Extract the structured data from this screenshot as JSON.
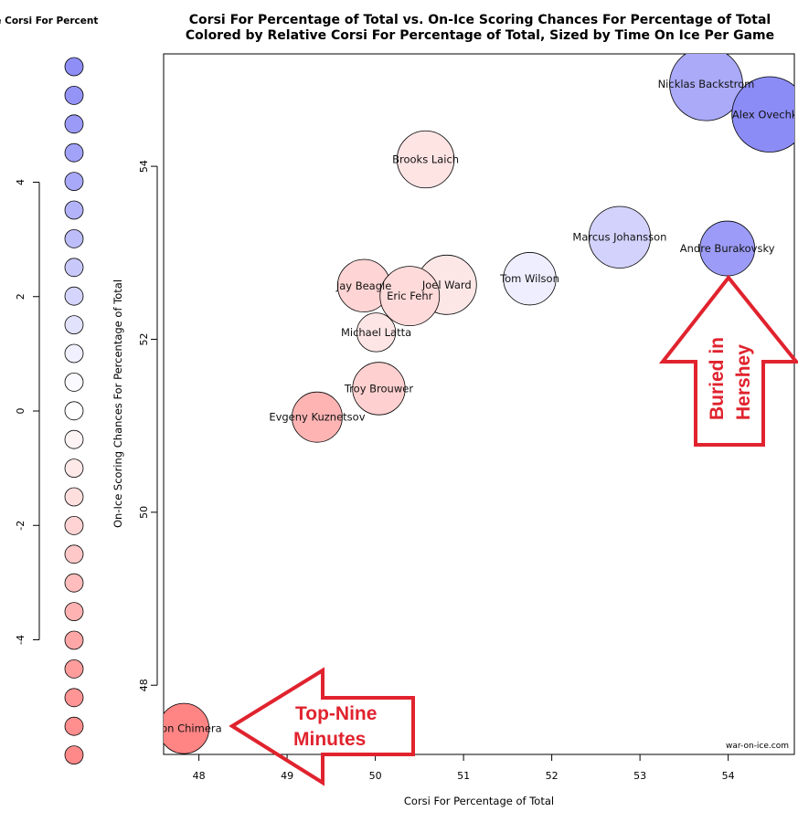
{
  "chart_data": {
    "type": "scatter",
    "title": "Corsi For Percentage of Total vs. On-Ice Scoring Chances For Percentage of Total",
    "subtitle": "Colored by Relative Corsi For Percentage of Total, Sized by Time On Ice Per Game",
    "xlabel": "Corsi For Percentage of Total",
    "ylabel": "On-Ice Scoring Chances For Percentage of Total",
    "xlim": [
      47.6,
      54.75
    ],
    "ylim": [
      47.2,
      55.3
    ],
    "x_ticks": [
      "48",
      "49",
      "50",
      "51",
      "52",
      "53",
      "54"
    ],
    "y_ticks": [
      "48",
      "50",
      "52",
      "54"
    ],
    "watermark": "war-on-ice.com",
    "points": [
      {
        "name": "Nicklas Backstrom",
        "x": 53.75,
        "y": 54.95,
        "rel_cf": 2.0,
        "size": 3.2,
        "color": "#aaaaf8"
      },
      {
        "name": "Alex Ovechkin",
        "x": 54.47,
        "y": 54.6,
        "rel_cf": 4.5,
        "size": 3.3,
        "color": "#8c8cf7"
      },
      {
        "name": "Brooks Laich",
        "x": 50.57,
        "y": 54.08,
        "rel_cf": -0.6,
        "size": 2.5,
        "color": "#ffe4e4"
      },
      {
        "name": "Marcus Johansson",
        "x": 52.77,
        "y": 53.18,
        "rel_cf": 1.6,
        "size": 2.7,
        "color": "#d2d2fc"
      },
      {
        "name": "Andre Burakovsky",
        "x": 53.99,
        "y": 53.05,
        "rel_cf": 3.5,
        "size": 2.4,
        "color": "#9c9cf8"
      },
      {
        "name": "Tom Wilson",
        "x": 51.75,
        "y": 52.7,
        "rel_cf": 0.6,
        "size": 2.3,
        "color": "#eeeeff"
      },
      {
        "name": "Joel Ward",
        "x": 50.81,
        "y": 52.63,
        "rel_cf": -0.5,
        "size": 2.6,
        "color": "#fde6e6"
      },
      {
        "name": "Jay Beagle",
        "x": 49.87,
        "y": 52.62,
        "rel_cf": -1.4,
        "size": 2.3,
        "color": "#fed4d4"
      },
      {
        "name": "Eric Fehr",
        "x": 50.39,
        "y": 52.5,
        "rel_cf": -1.1,
        "size": 2.6,
        "color": "#ffdada"
      },
      {
        "name": "Michael Latta",
        "x": 50.01,
        "y": 52.08,
        "rel_cf": -0.7,
        "size": 1.7,
        "color": "#fee5e5"
      },
      {
        "name": "Troy Brouwer",
        "x": 50.04,
        "y": 51.43,
        "rel_cf": -1.6,
        "size": 2.3,
        "color": "#ffd0d0"
      },
      {
        "name": "Evgeny Kuznetsov",
        "x": 49.34,
        "y": 51.1,
        "rel_cf": -2.6,
        "size": 2.2,
        "color": "#ffb4b4"
      },
      {
        "name": "Jason Chimera",
        "x": 47.83,
        "y": 47.5,
        "rel_cf": -4.6,
        "size": 2.2,
        "color": "#ff8484"
      }
    ],
    "legend": {
      "title": "Relative Corsi For Percent",
      "axis_range": [
        -4.95,
        4.95
      ],
      "ticks": [
        "-4",
        "-2",
        "0",
        "2",
        "4"
      ],
      "swatches": [
        {
          "value": 4.95,
          "color": "#8e8ef6"
        },
        {
          "value": 4.45,
          "color": "#9494f7"
        },
        {
          "value": 3.95,
          "color": "#9b9bf7"
        },
        {
          "value": 3.45,
          "color": "#a2a2f8"
        },
        {
          "value": 2.95,
          "color": "#a9a9f9"
        },
        {
          "value": 2.45,
          "color": "#b3b3f9"
        },
        {
          "value": 1.95,
          "color": "#bdbdfa"
        },
        {
          "value": 1.45,
          "color": "#c8c8fb"
        },
        {
          "value": 0.95,
          "color": "#d4d4fc"
        },
        {
          "value": 0.45,
          "color": "#e2e2fd"
        },
        {
          "value": -0.05,
          "color": "#f0f0ff"
        },
        {
          "value": -0.55,
          "color": "#fbfbff"
        },
        {
          "value": -1.05,
          "color": "#ffffff"
        },
        {
          "value": -1.55,
          "color": "#fff4f4"
        },
        {
          "value": -2.05,
          "color": "#ffe8e8"
        },
        {
          "value": -2.55,
          "color": "#ffdede"
        },
        {
          "value": -3.05,
          "color": "#ffd3d3"
        },
        {
          "value": -3.55,
          "color": "#ffc8c8"
        },
        {
          "value": -4.05,
          "color": "#ffbdbd"
        },
        {
          "value": -4.55,
          "color": "#ffb2b2"
        },
        {
          "value": -5.05,
          "color": "#ffa7a7"
        },
        {
          "value": -5.55,
          "color": "#ff9d9d"
        },
        {
          "value": -6.05,
          "color": "#ff9595"
        },
        {
          "value": -6.55,
          "color": "#ff8e8e"
        },
        {
          "value": -7.05,
          "color": "#ff8989"
        }
      ]
    },
    "annotations": [
      {
        "text": "Buried in\nHershey",
        "target": "Andre Burakovsky",
        "color": "#e0232e"
      },
      {
        "text": "Top-Nine\nMinutes",
        "target": "Jason Chimera",
        "color": "#e0232e"
      }
    ]
  }
}
